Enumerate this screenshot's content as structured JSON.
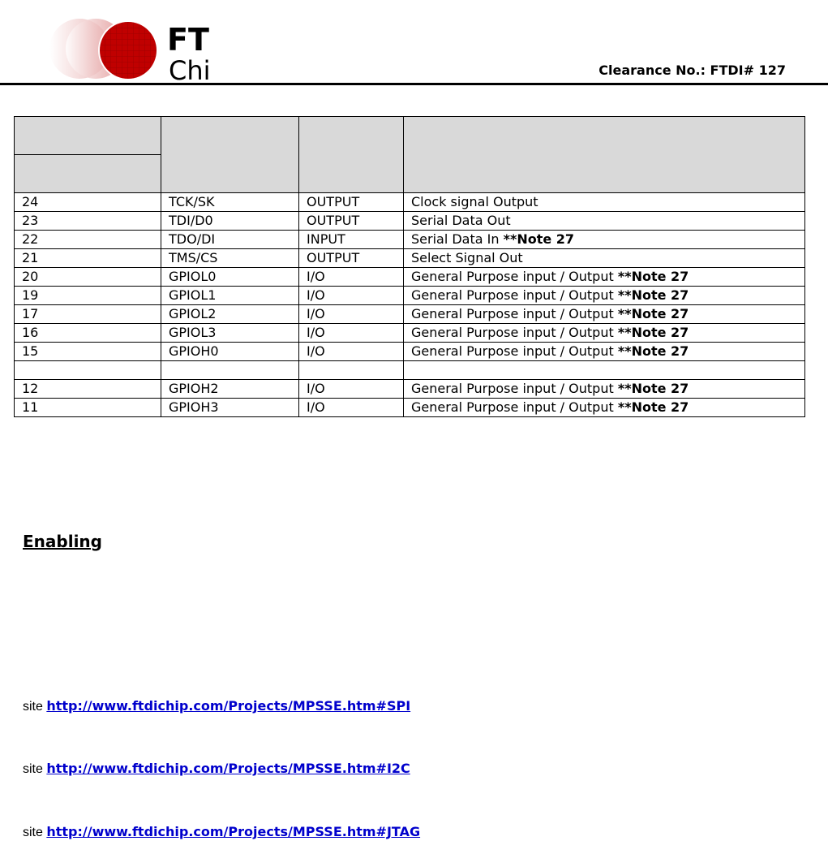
{
  "header": {
    "logo_text": "FTDI Chip",
    "clearance": "Clearance No.: FTDI# 127"
  },
  "table": {
    "rows": [
      {
        "pin": "24",
        "name": "TCK/SK",
        "type": "OUTPUT",
        "desc": "Clock signal Output",
        "note": ""
      },
      {
        "pin": "23",
        "name": "TDI/D0",
        "type": "OUTPUT",
        "desc": "Serial Data Out",
        "note": ""
      },
      {
        "pin": "22",
        "name": "TDO/DI",
        "type": "INPUT",
        "desc": "Serial Data In ",
        "note": "**Note 27"
      },
      {
        "pin": "21",
        "name": "TMS/CS",
        "type": "OUTPUT",
        "desc": "Select Signal Out",
        "note": ""
      },
      {
        "pin": "20",
        "name": "GPIOL0",
        "type": "I/O",
        "desc": "General Purpose input / Output ",
        "note": "**Note 27"
      },
      {
        "pin": "19",
        "name": "GPIOL1",
        "type": "I/O",
        "desc": "General Purpose input / Output ",
        "note": "**Note 27"
      },
      {
        "pin": "17",
        "name": "GPIOL2",
        "type": "I/O",
        "desc": "General Purpose input / Output ",
        "note": "**Note 27"
      },
      {
        "pin": "16",
        "name": "GPIOL3",
        "type": "I/O",
        "desc": "General Purpose input / Output ",
        "note": "**Note 27"
      },
      {
        "pin": "15",
        "name": "GPIOH0",
        "type": "I/O",
        "desc": "General Purpose input / Output ",
        "note": "**Note 27"
      },
      {
        "pin": "",
        "name": "",
        "type": "",
        "desc": "",
        "note": ""
      },
      {
        "pin": "12",
        "name": "GPIOH2",
        "type": "I/O",
        "desc": "General Purpose input / Output ",
        "note": "**Note 27"
      },
      {
        "pin": "11",
        "name": "GPIOH3",
        "type": "I/O",
        "desc": "General Purpose input / Output ",
        "note": "**Note 27"
      }
    ]
  },
  "section_heading": "Enabling",
  "links": [
    {
      "prefix": "site ",
      "url": "http://www.ftdichip.com/Projects/MPSSE.htm#SPI"
    },
    {
      "prefix": "site ",
      "url": "http://www.ftdichip.com/Projects/MPSSE.htm#I2C"
    },
    {
      "prefix": "site ",
      "url": "http://www.ftdichip.com/Projects/MPSSE.htm#JTAG"
    }
  ]
}
